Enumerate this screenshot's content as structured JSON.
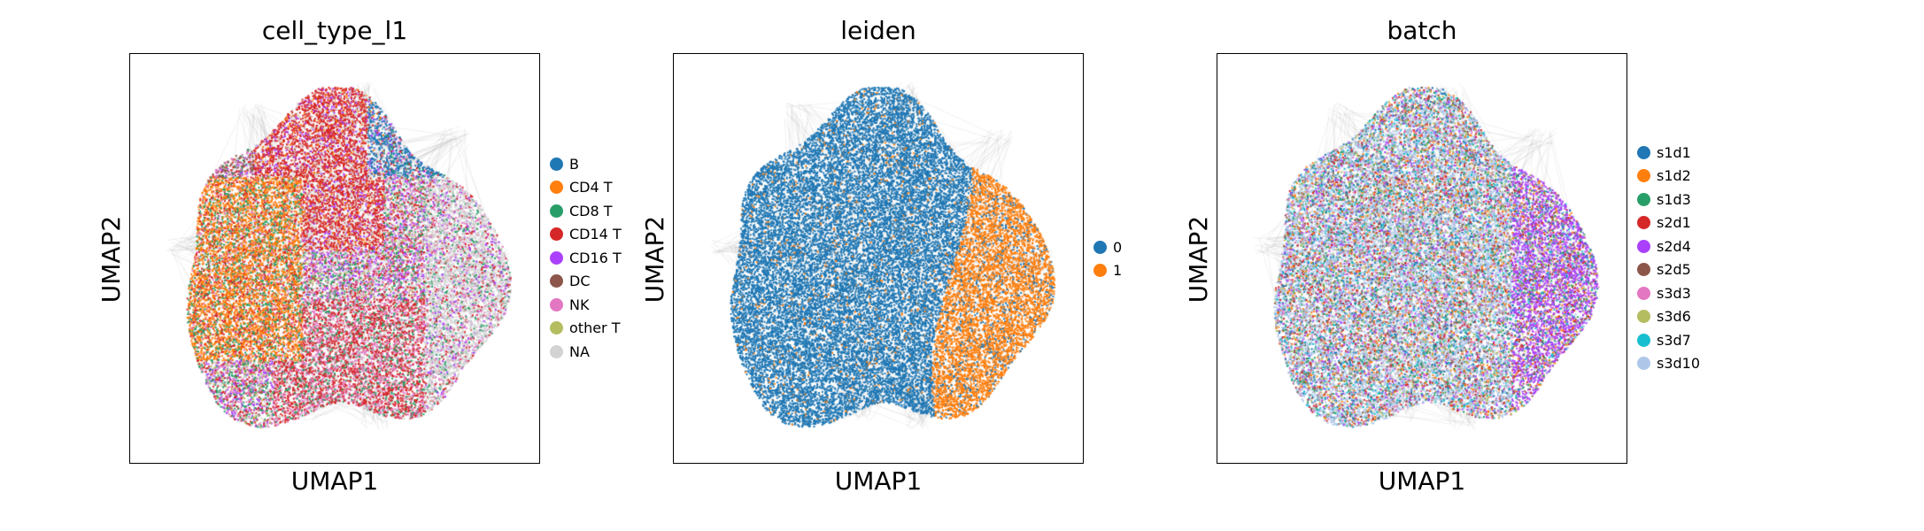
{
  "chart_data": [
    {
      "type": "scatter",
      "title": "cell_type_l1",
      "xlabel": "UMAP1",
      "ylabel": "UMAP2",
      "legend_placement": "right",
      "grid": false,
      "categories": [
        "B",
        "CD4 T",
        "CD8 T",
        "CD14 T",
        "CD16 T",
        "DC",
        "NK",
        "other T",
        "NA"
      ],
      "colors": [
        "#1f77b4",
        "#ff7f0e",
        "#279e68",
        "#d62728",
        "#aa40fc",
        "#8c564b",
        "#e377c2",
        "#b5bd61",
        "#d3d3d3"
      ]
    },
    {
      "type": "scatter",
      "title": "leiden",
      "xlabel": "UMAP1",
      "ylabel": "UMAP2",
      "legend_placement": "right",
      "grid": false,
      "categories": [
        "0",
        "1"
      ],
      "colors": [
        "#1f77b4",
        "#ff7f0e"
      ]
    },
    {
      "type": "scatter",
      "title": "batch",
      "xlabel": "UMAP1",
      "ylabel": "UMAP2",
      "legend_placement": "right",
      "grid": false,
      "categories": [
        "s1d1",
        "s1d2",
        "s1d3",
        "s2d1",
        "s2d4",
        "s2d5",
        "s3d3",
        "s3d6",
        "s3d7",
        "s3d10"
      ],
      "colors": [
        "#1f77b4",
        "#ff7f0e",
        "#279e68",
        "#d62728",
        "#aa40fc",
        "#8c564b",
        "#e377c2",
        "#b5bd61",
        "#17becf",
        "#aec7e8"
      ]
    }
  ]
}
